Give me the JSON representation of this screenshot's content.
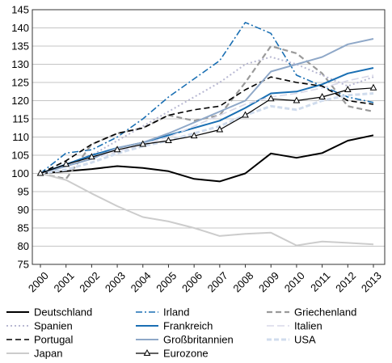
{
  "chart_data": {
    "type": "line",
    "title": "",
    "xlabel": "",
    "ylabel": "",
    "ylim": [
      75,
      145
    ],
    "yticks": [
      75,
      80,
      85,
      90,
      95,
      100,
      105,
      110,
      115,
      120,
      125,
      130,
      135,
      140,
      145
    ],
    "x": [
      "2000",
      "2001",
      "2002",
      "2003",
      "2004",
      "2005",
      "2006",
      "2007",
      "2008",
      "2009",
      "2010",
      "2011",
      "2012",
      "2013"
    ],
    "grid": "horizontal",
    "legend_position": "bottom",
    "series": [
      {
        "name": "Deutschland",
        "color": "#000000",
        "dash": "",
        "width": 2,
        "values": [
          100,
          100.6,
          101.2,
          102,
          101.5,
          100.6,
          98.5,
          97.8,
          100,
          105.5,
          104.3,
          105.6,
          109,
          110.5
        ]
      },
      {
        "name": "Irland",
        "color": "#1a6fb3",
        "dash": "8,3,2,3",
        "width": 1.6,
        "values": [
          100,
          105.6,
          106.5,
          110,
          115,
          121,
          126,
          131,
          141.5,
          138.5,
          127,
          124,
          121,
          119.5
        ]
      },
      {
        "name": "Griechenland",
        "color": "#9a9a9a",
        "dash": "7,4",
        "width": 2.2,
        "values": [
          100,
          98.5,
          108,
          111,
          112.5,
          116,
          114.5,
          116,
          125,
          135,
          133,
          127.5,
          118.5,
          117
        ]
      },
      {
        "name": "Spanien",
        "color": "#b8b8d2",
        "dash": "2,3",
        "width": 2,
        "values": [
          100,
          102.5,
          105,
          109,
          113,
          117,
          121,
          125,
          130,
          132,
          130,
          127,
          124,
          126.5
        ]
      },
      {
        "name": "Frankreich",
        "color": "#1a6fb3",
        "dash": "",
        "width": 2,
        "values": [
          100,
          102.5,
          105,
          107,
          108.5,
          110.5,
          112.5,
          114.5,
          118,
          122,
          122.5,
          124.5,
          127.5,
          129
        ]
      },
      {
        "name": "Italien",
        "color": "#d8d8e8",
        "dash": "9,4",
        "width": 1.6,
        "values": [
          100,
          102,
          104,
          106,
          108,
          110,
          113,
          116,
          119,
          121,
          122,
          123.5,
          125.5,
          127
        ]
      },
      {
        "name": "Portugal",
        "color": "#000000",
        "dash": "7,4",
        "width": 1.6,
        "values": [
          100,
          103.5,
          108,
          111,
          112.5,
          116,
          117.5,
          118.5,
          123,
          126.5,
          125,
          124,
          120,
          119
        ]
      },
      {
        "name": "Großbritannien",
        "color": "#8fa8c8",
        "dash": "",
        "width": 2,
        "values": [
          100,
          102,
          104,
          107,
          108.5,
          111,
          114,
          117,
          120,
          128,
          130,
          132,
          135.5,
          137
        ]
      },
      {
        "name": "USA",
        "color": "#d0dced",
        "dash": "6,3",
        "width": 3,
        "values": [
          100,
          101,
          103,
          105.5,
          107.5,
          109,
          111,
          113,
          116,
          118.5,
          117.5,
          120,
          121.5,
          122
        ]
      },
      {
        "name": "Japan",
        "color": "#cccccc",
        "dash": "",
        "width": 2,
        "values": [
          100,
          98.2,
          94.5,
          91,
          88,
          86.8,
          85,
          82.8,
          83.4,
          83.7,
          80.2,
          81.3,
          80.9,
          80.5
        ]
      },
      {
        "name": "Eurozone",
        "color": "#000000",
        "dash": "",
        "width": 1.2,
        "marker": "triangle",
        "values": [
          100,
          102.5,
          104.5,
          106.5,
          108,
          109,
          110.3,
          112,
          116,
          120.5,
          120,
          121,
          123,
          123.5
        ]
      }
    ]
  }
}
